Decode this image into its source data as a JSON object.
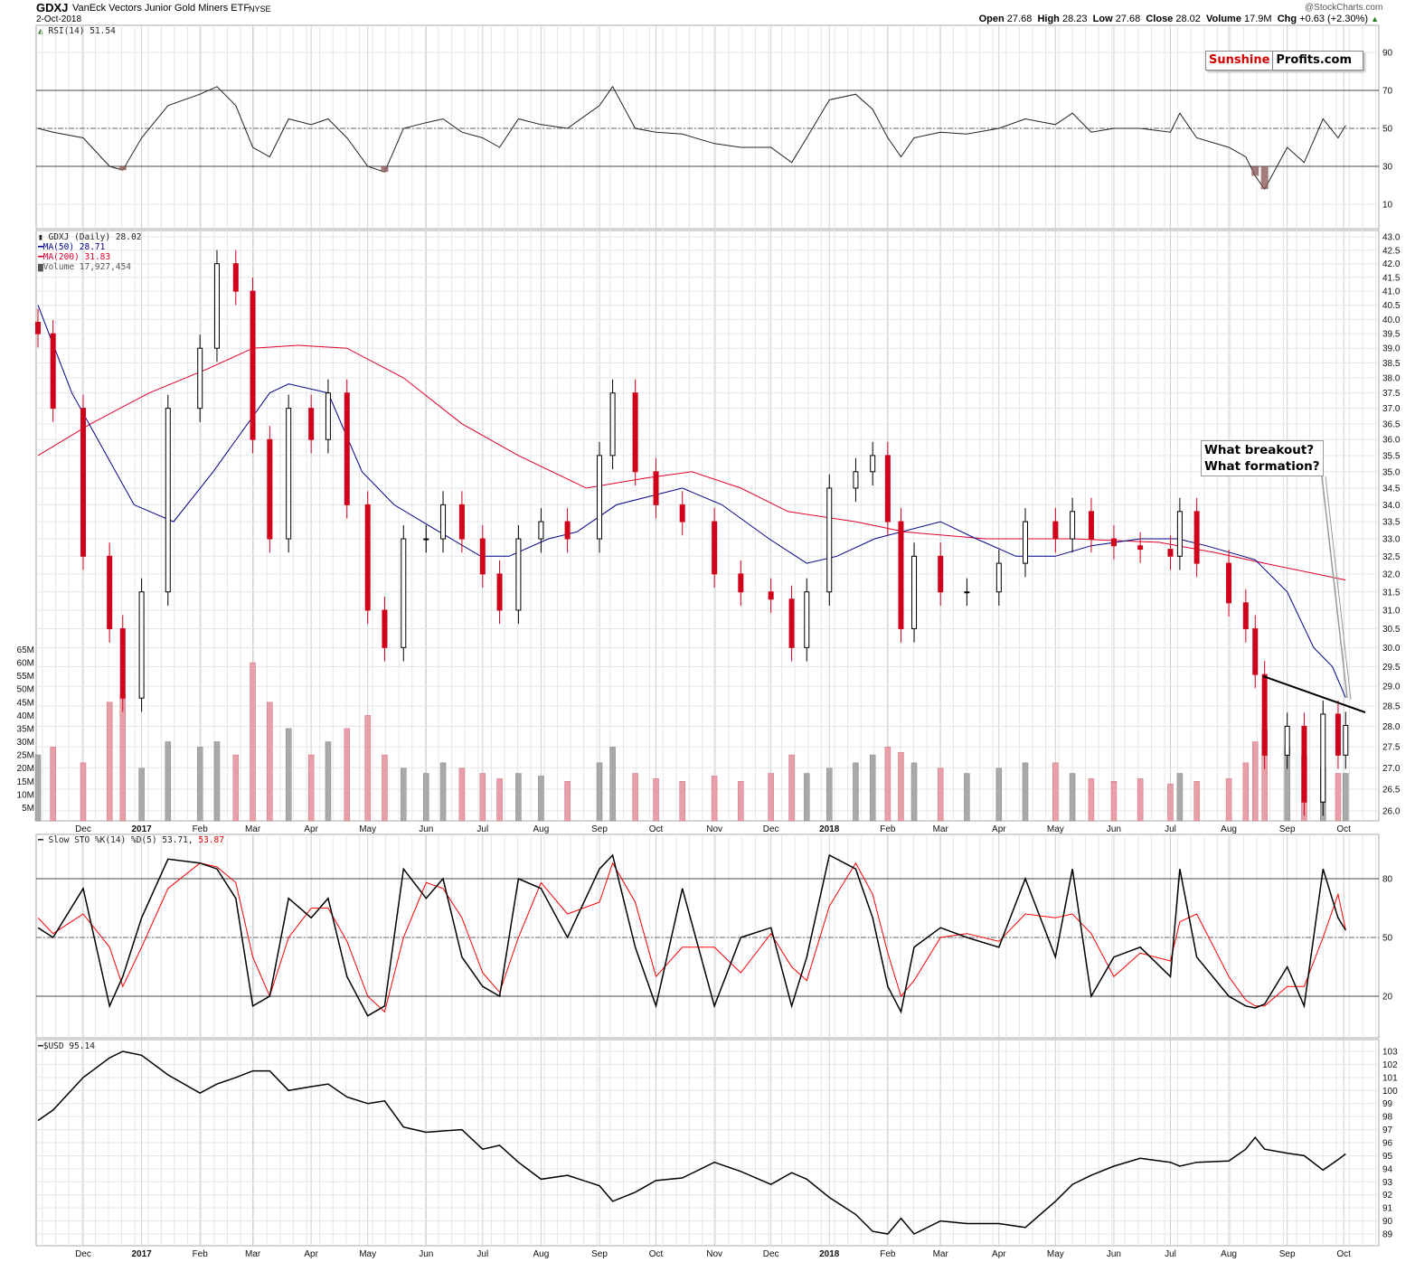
{
  "header": {
    "symbol": "GDXJ",
    "name": "VanEck Vectors Junior Gold Miners ETF",
    "exchange": "NYSE",
    "date": "2-Oct-2018",
    "copyright": "@StockCharts.com",
    "open_label": "Open",
    "open": "27.68",
    "high_label": "High",
    "high": "28.23",
    "low_label": "Low",
    "low": "27.68",
    "close_label": "Close",
    "close": "28.02",
    "volume_label": "Volume",
    "volume": "17.9M",
    "chg_label": "Chg",
    "chg": "+0.63 (+2.30%)"
  },
  "logo": {
    "part1": "Sunshine",
    "part2": "Profits.com",
    "part1_color": "#d40000"
  },
  "annotation": {
    "line1": "What breakout?",
    "line2": "What formation?"
  },
  "legends": {
    "rsi": "RSI(14) 51.54",
    "price": "GDXJ (Daily) 28.02",
    "ma50": "MA(50) 28.71",
    "ma200": "MA(200) 31.83",
    "volume": "Volume 17,927,454",
    "sto": "Slow STO %K(14) %D(5) 53.71,",
    "sto_d": "53.87",
    "usd": "$USD 95.14"
  },
  "colors": {
    "up": "#000000",
    "down": "#d0021b",
    "ma50": "#00008b",
    "ma200": "#e0002a",
    "vol_up": "#a9a9a9",
    "vol_down": "#e8a0a8",
    "rsi_fill": "#8b5a5a",
    "sto_d": "#ff0000"
  },
  "chart_data": {
    "type": "line",
    "x_ticks": [
      {
        "date": "2016-12-01",
        "label": "Dec"
      },
      {
        "date": "2017-01-01",
        "label": "2017"
      },
      {
        "date": "2017-02-01",
        "label": "Feb"
      },
      {
        "date": "2017-03-01",
        "label": "Mar"
      },
      {
        "date": "2017-04-01",
        "label": "Apr"
      },
      {
        "date": "2017-05-01",
        "label": "May"
      },
      {
        "date": "2017-06-01",
        "label": "Jun"
      },
      {
        "date": "2017-07-01",
        "label": "Jul"
      },
      {
        "date": "2017-08-01",
        "label": "Aug"
      },
      {
        "date": "2017-09-01",
        "label": "Sep"
      },
      {
        "date": "2017-10-01",
        "label": "Oct"
      },
      {
        "date": "2017-11-01",
        "label": "Nov"
      },
      {
        "date": "2017-12-01",
        "label": "Dec"
      },
      {
        "date": "2018-01-01",
        "label": "2018"
      },
      {
        "date": "2018-02-01",
        "label": "Feb"
      },
      {
        "date": "2018-03-01",
        "label": "Mar"
      },
      {
        "date": "2018-04-01",
        "label": "Apr"
      },
      {
        "date": "2018-05-01",
        "label": "May"
      },
      {
        "date": "2018-06-01",
        "label": "Jun"
      },
      {
        "date": "2018-07-01",
        "label": "Jul"
      },
      {
        "date": "2018-08-01",
        "label": "Aug"
      },
      {
        "date": "2018-09-01",
        "label": "Sep"
      },
      {
        "date": "2018-10-01",
        "label": "Oct"
      }
    ],
    "rsi_ticks": [
      "90",
      "70",
      "50",
      "30",
      "10"
    ],
    "price_ticks": [
      "43.0",
      "42.5",
      "42.0",
      "41.5",
      "41.0",
      "40.5",
      "40.0",
      "39.5",
      "39.0",
      "38.5",
      "38.0",
      "37.5",
      "37.0",
      "36.5",
      "36.0",
      "35.5",
      "35.0",
      "34.5",
      "34.0",
      "33.5",
      "33.0",
      "32.5",
      "32.0",
      "31.5",
      "31.0",
      "30.5",
      "30.0",
      "29.5",
      "29.0",
      "28.5",
      "28.0",
      "27.5",
      "27.0",
      "26.5",
      "26.0"
    ],
    "price_scale": "log",
    "volume_ticks": [
      "65M",
      "60M",
      "55M",
      "50M",
      "45M",
      "40M",
      "35M",
      "30M",
      "25M",
      "20M",
      "15M",
      "10M",
      "5M"
    ],
    "sto_ticks": [
      "80",
      "50",
      "20"
    ],
    "usd_ticks": [
      "103",
      "102",
      "101",
      "100",
      "99",
      "98",
      "97",
      "96",
      "95",
      "94",
      "93",
      "92",
      "91",
      "90",
      "89"
    ],
    "dates": [
      "2016-11-07",
      "2016-11-15",
      "2016-12-01",
      "2016-12-15",
      "2016-12-22",
      "2017-01-01",
      "2017-01-15",
      "2017-02-01",
      "2017-02-10",
      "2017-02-20",
      "2017-03-01",
      "2017-03-10",
      "2017-03-20",
      "2017-04-01",
      "2017-04-10",
      "2017-04-20",
      "2017-05-01",
      "2017-05-10",
      "2017-05-20",
      "2017-06-01",
      "2017-06-10",
      "2017-06-20",
      "2017-07-01",
      "2017-07-10",
      "2017-07-20",
      "2017-08-01",
      "2017-08-15",
      "2017-09-01",
      "2017-09-08",
      "2017-09-20",
      "2017-10-01",
      "2017-10-15",
      "2017-11-01",
      "2017-11-15",
      "2017-12-01",
      "2017-12-12",
      "2017-12-20",
      "2018-01-01",
      "2018-01-15",
      "2018-01-24",
      "2018-02-01",
      "2018-02-08",
      "2018-02-15",
      "2018-03-01",
      "2018-03-15",
      "2018-04-01",
      "2018-04-15",
      "2018-05-01",
      "2018-05-10",
      "2018-05-20",
      "2018-06-01",
      "2018-06-15",
      "2018-07-01",
      "2018-07-06",
      "2018-07-15",
      "2018-08-01",
      "2018-08-10",
      "2018-08-15",
      "2018-08-20",
      "2018-09-01",
      "2018-09-10",
      "2018-09-20",
      "2018-09-28",
      "2018-10-02"
    ],
    "close": [
      39.5,
      37,
      32.5,
      30.5,
      28.7,
      31.5,
      37,
      39,
      42,
      41,
      36,
      33,
      37,
      36,
      37.5,
      34,
      31,
      30,
      33,
      33,
      34,
      33,
      32,
      31,
      33,
      33.5,
      33,
      35.5,
      37.5,
      35,
      34,
      33.5,
      32,
      31.5,
      31.3,
      30,
      31.5,
      34.5,
      35,
      35.5,
      33.5,
      30.5,
      32.5,
      31.5,
      31.5,
      32.3,
      33.5,
      33,
      33.8,
      33,
      32.8,
      32.7,
      32.5,
      33.8,
      32.3,
      31.2,
      30.5,
      29.3,
      27.3,
      28,
      26.2,
      28.3,
      27.3,
      28.02
    ],
    "volume_m": [
      25,
      28,
      22,
      45,
      48,
      20,
      30,
      28,
      30,
      25,
      60,
      45,
      35,
      25,
      30,
      35,
      40,
      25,
      20,
      18,
      22,
      20,
      18,
      16,
      18,
      17,
      15,
      22,
      28,
      18,
      16,
      15,
      17,
      15,
      18,
      25,
      18,
      20,
      22,
      25,
      28,
      26,
      22,
      20,
      18,
      20,
      22,
      22,
      18,
      16,
      15,
      16,
      14,
      18,
      15,
      16,
      22,
      30,
      35,
      28,
      25,
      20,
      18,
      18
    ],
    "ma50_dates": [
      "2016-11-07",
      "2016-11-25",
      "2016-12-28",
      "2017-01-18",
      "2017-02-08",
      "2017-03-10",
      "2017-03-20",
      "2017-04-10",
      "2017-04-28",
      "2017-05-15",
      "2017-06-05",
      "2017-06-30",
      "2017-07-15",
      "2017-08-05",
      "2017-08-20",
      "2017-09-10",
      "2017-10-15",
      "2017-11-05",
      "2017-11-30",
      "2017-12-20",
      "2018-01-05",
      "2018-01-25",
      "2018-03-01",
      "2018-03-20",
      "2018-04-10",
      "2018-05-01",
      "2018-05-20",
      "2018-06-15",
      "2018-07-05",
      "2018-07-20",
      "2018-08-15",
      "2018-09-01",
      "2018-09-15",
      "2018-09-25",
      "2018-10-02"
    ],
    "ma50": [
      40.5,
      37.5,
      34,
      33.5,
      35,
      37.5,
      37.8,
      37.5,
      35,
      34,
      33.3,
      32.5,
      32.5,
      33,
      33.2,
      34,
      34.5,
      34,
      33,
      32.3,
      32.5,
      33,
      33.5,
      33,
      32.5,
      32.5,
      32.8,
      33,
      33,
      32.8,
      32.4,
      31.5,
      30,
      29.5,
      28.71
    ],
    "ma200_dates": [
      "2016-11-07",
      "2016-12-05",
      "2017-01-05",
      "2017-02-05",
      "2017-03-01",
      "2017-03-25",
      "2017-04-20",
      "2017-05-20",
      "2017-06-20",
      "2017-07-20",
      "2017-08-25",
      "2017-09-25",
      "2017-10-20",
      "2017-11-15",
      "2017-12-10",
      "2018-01-15",
      "2018-02-10",
      "2018-03-25",
      "2018-05-10",
      "2018-06-25",
      "2018-07-25",
      "2018-08-20",
      "2018-10-02"
    ],
    "ma200": [
      35.5,
      36.5,
      37.5,
      38.3,
      39,
      39.1,
      39,
      38,
      36.5,
      35.5,
      34.5,
      34.8,
      35,
      34.5,
      33.8,
      33.5,
      33.2,
      33,
      33,
      32.9,
      32.6,
      32.3,
      31.83
    ],
    "rsi": [
      50,
      48,
      45,
      30,
      28,
      45,
      62,
      68,
      72,
      62,
      40,
      35,
      55,
      52,
      55,
      45,
      30,
      27,
      50,
      53,
      55,
      48,
      45,
      40,
      55,
      52,
      50,
      62,
      72,
      50,
      48,
      47,
      42,
      40,
      40,
      32,
      45,
      65,
      68,
      60,
      45,
      35,
      45,
      48,
      47,
      50,
      55,
      52,
      58,
      48,
      50,
      50,
      48,
      58,
      45,
      40,
      35,
      25,
      18,
      40,
      32,
      55,
      45,
      51.54
    ],
    "sto_k": [
      55,
      50,
      75,
      15,
      30,
      60,
      90,
      88,
      85,
      70,
      15,
      20,
      70,
      60,
      70,
      30,
      10,
      15,
      85,
      70,
      80,
      40,
      25,
      20,
      80,
      75,
      50,
      85,
      92,
      45,
      15,
      75,
      15,
      50,
      55,
      15,
      40,
      92,
      85,
      60,
      25,
      12,
      45,
      55,
      50,
      45,
      80,
      40,
      85,
      20,
      40,
      45,
      30,
      85,
      40,
      20,
      15,
      14,
      16,
      35,
      15,
      85,
      60,
      53.71
    ],
    "sto_d": [
      60,
      52,
      62,
      45,
      25,
      45,
      75,
      88,
      86,
      78,
      40,
      20,
      50,
      65,
      65,
      48,
      20,
      12,
      50,
      78,
      75,
      60,
      32,
      22,
      50,
      78,
      62,
      68,
      88,
      68,
      30,
      45,
      45,
      32,
      52,
      35,
      28,
      66,
      88,
      72,
      42,
      20,
      28,
      50,
      52,
      48,
      62,
      60,
      62,
      52,
      30,
      42,
      38,
      58,
      62,
      30,
      18,
      15,
      15,
      25,
      25,
      50,
      72,
      53.87
    ],
    "usd": [
      97.7,
      98.5,
      101,
      102.5,
      103,
      102.7,
      101.2,
      99.8,
      100.5,
      101,
      101.5,
      101.5,
      100,
      100.3,
      100.5,
      99.5,
      99,
      99.2,
      97.2,
      96.8,
      96.9,
      97,
      95.5,
      95.8,
      94.5,
      93.2,
      93.5,
      92.7,
      91.5,
      92.2,
      93.1,
      93.3,
      94.5,
      93.8,
      92.8,
      93.7,
      93.2,
      91.8,
      90.5,
      89.2,
      89,
      90.2,
      89,
      90,
      89.8,
      89.8,
      89.5,
      91.5,
      92.8,
      93.5,
      94.2,
      94.8,
      94.5,
      94.2,
      94.5,
      94.6,
      95.5,
      96.4,
      95.5,
      95.2,
      95,
      93.9,
      94.7,
      95.14
    ]
  }
}
